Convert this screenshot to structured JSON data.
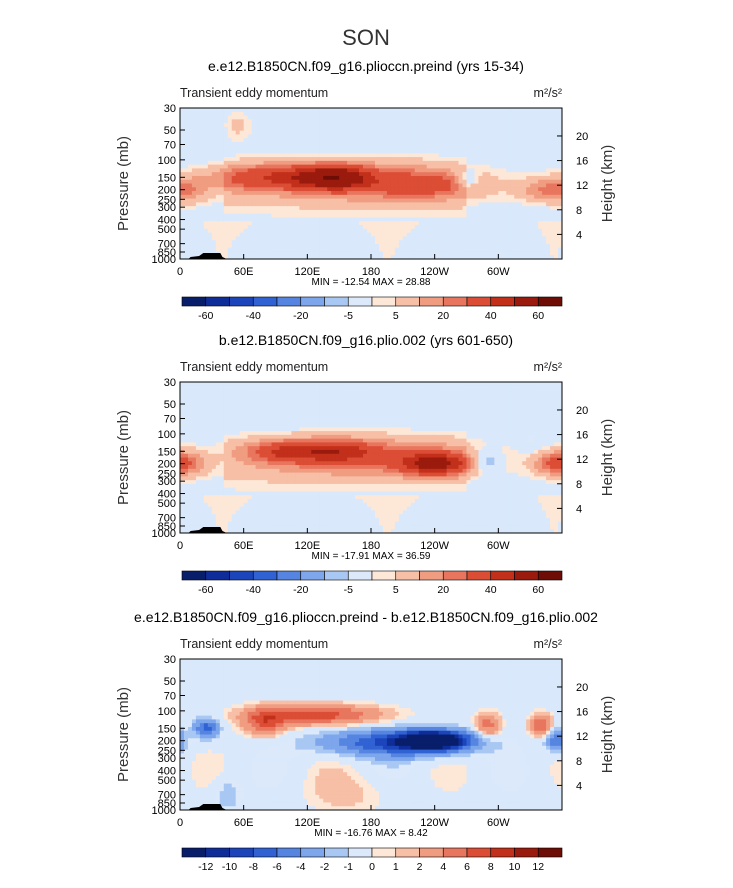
{
  "figure_title": "SON",
  "chart_data": [
    {
      "type": "heatmap",
      "title": "e.e12.B1850CN.f09_g16.plioccn.preind (yrs 15-34)",
      "subtitle_left": "Transient eddy momentum",
      "units": "m²/s²",
      "ylabel": "Pressure (mb)",
      "ylabel_right": "Height (km)",
      "x_ticks": [
        "0",
        "60E",
        "120E",
        "180",
        "120W",
        "60W"
      ],
      "y_ticks": [
        "30",
        "50",
        "70",
        "100",
        "150",
        "200",
        "250",
        "300",
        "400",
        "500",
        "700",
        "850",
        "1000"
      ],
      "height_ticks": [
        "20",
        "16",
        "12",
        "8",
        "4"
      ],
      "min_max": "MIN = -12.54   MAX =   28.88",
      "colorbar_labels": [
        "-60",
        "-40",
        "-20",
        "-5",
        "5",
        "20",
        "40",
        "60"
      ],
      "features": [
        {
          "lon": 130,
          "p": 150,
          "amp": 26,
          "wlon": 28,
          "wlev": 0.28
        },
        {
          "lon": 150,
          "p": 150,
          "amp": 24,
          "wlon": 20,
          "wlev": 0.25
        },
        {
          "lon": 70,
          "p": 150,
          "amp": 18,
          "wlon": 30,
          "wlev": 0.3
        },
        {
          "lon": 230,
          "p": 180,
          "amp": 14,
          "wlon": 35,
          "wlev": 0.3
        },
        {
          "lon": 180,
          "p": 160,
          "amp": 12,
          "wlon": 60,
          "wlev": 0.45
        },
        {
          "lon": 5,
          "p": 200,
          "amp": 12,
          "wlon": 15,
          "wlev": 0.3
        },
        {
          "lon": 340,
          "p": 200,
          "amp": 10,
          "wlon": 15,
          "wlev": 0.25
        },
        {
          "lon": 270,
          "p": 160,
          "amp": -11,
          "wlon": 8,
          "wlev": 0.22
        },
        {
          "lon": 55,
          "p": 45,
          "amp": 6,
          "wlon": 10,
          "wlev": 0.4
        }
      ]
    },
    {
      "type": "heatmap",
      "title": "b.e12.B1850CN.f09_g16.plio.002 (yrs 601-650)",
      "subtitle_left": "Transient eddy momentum",
      "units": "m²/s²",
      "ylabel": "Pressure (mb)",
      "ylabel_right": "Height (km)",
      "x_ticks": [
        "0",
        "60E",
        "120E",
        "180",
        "120W",
        "60W"
      ],
      "y_ticks": [
        "30",
        "50",
        "70",
        "100",
        "150",
        "200",
        "250",
        "300",
        "400",
        "500",
        "700",
        "850",
        "1000"
      ],
      "height_ticks": [
        "20",
        "16",
        "12",
        "8",
        "4"
      ],
      "min_max": "MIN = -17.91   MAX =   36.59",
      "colorbar_labels": [
        "-60",
        "-40",
        "-20",
        "-5",
        "5",
        "20",
        "40",
        "60"
      ],
      "features": [
        {
          "lon": 240,
          "p": 200,
          "amp": 36,
          "wlon": 22,
          "wlev": 0.25
        },
        {
          "lon": 100,
          "p": 150,
          "amp": 22,
          "wlon": 25,
          "wlev": 0.25
        },
        {
          "lon": 150,
          "p": 150,
          "amp": 22,
          "wlon": 25,
          "wlev": 0.25
        },
        {
          "lon": 180,
          "p": 170,
          "amp": 12,
          "wlon": 70,
          "wlev": 0.45
        },
        {
          "lon": 5,
          "p": 200,
          "amp": 15,
          "wlon": 14,
          "wlev": 0.28
        },
        {
          "lon": 350,
          "p": 200,
          "amp": 12,
          "wlon": 12,
          "wlev": 0.25
        },
        {
          "lon": 290,
          "p": 190,
          "amp": -14,
          "wlon": 9,
          "wlev": 0.25
        },
        {
          "lon": 330,
          "p": 120,
          "amp": -6,
          "wlon": 8,
          "wlev": 0.25
        }
      ]
    },
    {
      "type": "heatmap",
      "title": "e.e12.B1850CN.f09_g16.plioccn.preind - b.e12.B1850CN.f09_g16.plio.002",
      "subtitle_left": "Transient eddy momentum",
      "units": "m²/s²",
      "ylabel": "Pressure (mb)",
      "ylabel_right": "Height (km)",
      "x_ticks": [
        "0",
        "60E",
        "120E",
        "180",
        "120W",
        "60W"
      ],
      "y_ticks": [
        "30",
        "50",
        "70",
        "100",
        "150",
        "200",
        "250",
        "300",
        "400",
        "500",
        "700",
        "850",
        "1000"
      ],
      "height_ticks": [
        "20",
        "16",
        "12",
        "8",
        "4"
      ],
      "min_max": "MIN = -16.76   MAX =    8.42",
      "colorbar_labels": [
        "-12",
        "-10",
        "-8",
        "-6",
        "-4",
        "-2",
        "-1",
        "0",
        "1",
        "2",
        "4",
        "6",
        "8",
        "10",
        "12"
      ],
      "features": [
        {
          "lon": 240,
          "p": 200,
          "amp": -16,
          "wlon": 22,
          "wlev": 0.22
        },
        {
          "lon": 200,
          "p": 210,
          "amp": -8,
          "wlon": 45,
          "wlev": 0.3
        },
        {
          "lon": 130,
          "p": 110,
          "amp": 7,
          "wlon": 40,
          "wlev": 0.22
        },
        {
          "lon": 80,
          "p": 130,
          "amp": 6,
          "wlon": 14,
          "wlev": 0.3
        },
        {
          "lon": 25,
          "p": 150,
          "amp": -7,
          "wlon": 8,
          "wlev": 0.22
        },
        {
          "lon": 290,
          "p": 140,
          "amp": 5,
          "wlon": 8,
          "wlev": 0.28
        },
        {
          "lon": 340,
          "p": 140,
          "amp": 6,
          "wlon": 7,
          "wlev": 0.25
        },
        {
          "lon": 355,
          "p": 200,
          "amp": -6,
          "wlon": 7,
          "wlev": 0.25
        },
        {
          "lon": 160,
          "p": 700,
          "amp": 1.2,
          "wlon": 30,
          "wlev": 0.5
        },
        {
          "lon": 45,
          "p": 700,
          "amp": -2,
          "wlon": 8,
          "wlev": 0.4
        }
      ]
    }
  ],
  "colors": {
    "positive": [
      "#fde8d8",
      "#f7bfa6",
      "#f09c81",
      "#e8765e",
      "#dc4d35",
      "#c22f1a",
      "#9a1a0d",
      "#6e0d05"
    ],
    "negative": [
      "#dbe9fb",
      "#a8c8f3",
      "#7da6ec",
      "#5585e0",
      "#3162d4",
      "#1c45bb",
      "#0e2d98",
      "#081e6b"
    ],
    "panel_default": "#d9e8fb",
    "topography": "#000000"
  }
}
